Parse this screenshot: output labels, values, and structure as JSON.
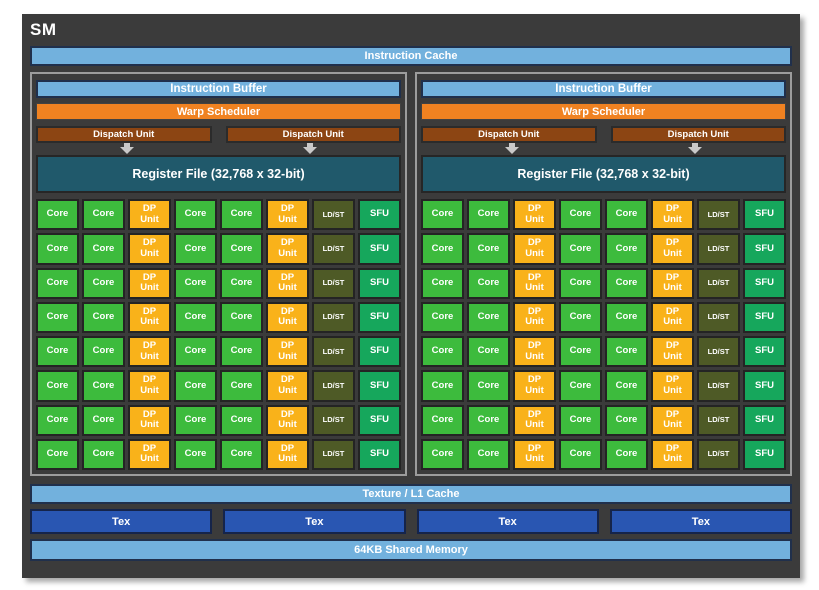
{
  "title": "SM",
  "colors": {
    "frame": "#3b3b3b",
    "panel_border": "#9c9c9c",
    "light_blue": "#72b1dd",
    "blue_border": "#20304c",
    "orange": "#f08221",
    "dispatch_brown": "#8c4513",
    "teal": "#20596b",
    "core_green": "#3dbb3d",
    "dp_amber": "#f9b21a",
    "ldst_olive": "#4e5a26",
    "sfu_green": "#16a75c",
    "tex_blue": "#2956b2",
    "tex_border": "#15244a",
    "arrow_gray": "#c9c9c9"
  },
  "instruction_cache": "Instruction Cache",
  "partition": {
    "instruction_buffer": "Instruction Buffer",
    "warp_scheduler": "Warp Scheduler",
    "dispatch_unit": "Dispatch Unit",
    "register_file": "Register File (32,768 x 32-bit)"
  },
  "core_grid": {
    "rows": 8,
    "column_pattern": [
      "core",
      "core",
      "dp_unit",
      "core",
      "core",
      "dp_unit",
      "ld_st",
      "sfu"
    ],
    "cell_labels": {
      "core": "Core",
      "dp_unit": "DP\nUnit",
      "ld_st": "LD/ST",
      "sfu": "SFU"
    }
  },
  "bottom": {
    "texture_l1": "Texture / L1 Cache",
    "tex": "Tex",
    "tex_count": 4,
    "shared_memory": "64KB Shared Memory"
  }
}
